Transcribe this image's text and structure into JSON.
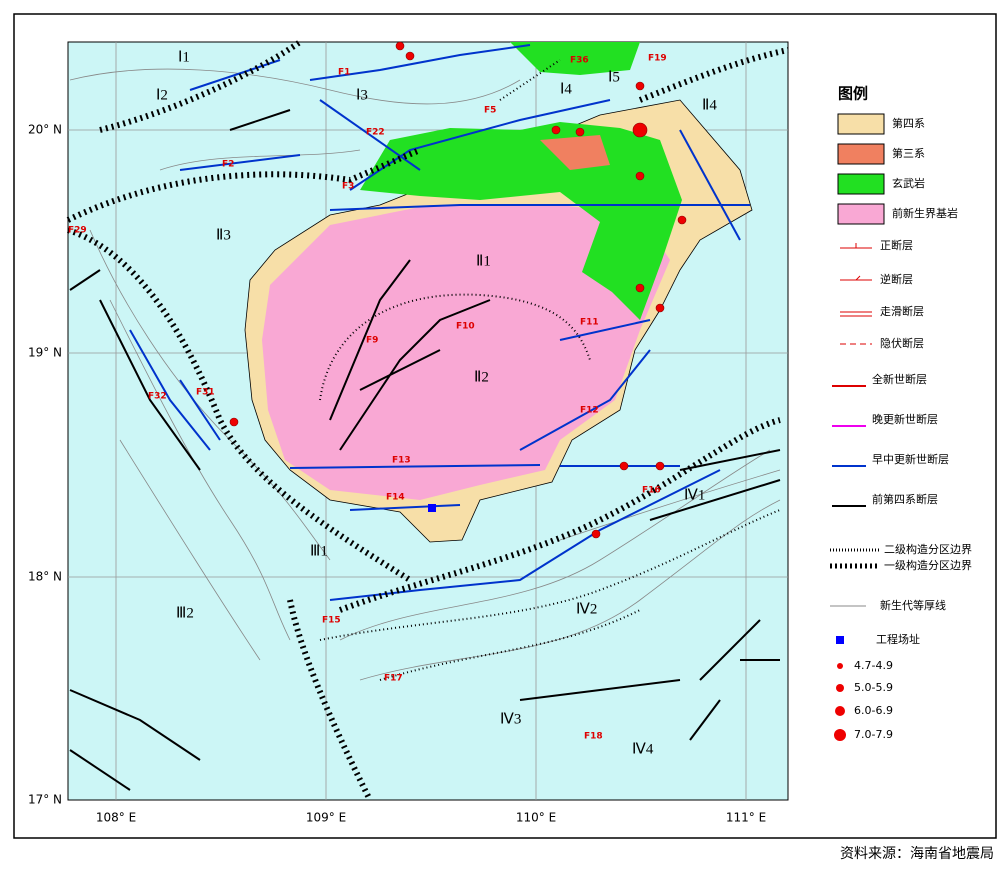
{
  "map": {
    "lat_labels": [
      "20° N",
      "19° N",
      "18° N",
      "17° N"
    ],
    "lon_labels": [
      "108° E",
      "109° E",
      "110° E",
      "111° E"
    ],
    "zones": [
      "Ⅰ1",
      "Ⅰ2",
      "Ⅰ3",
      "Ⅰ4",
      "Ⅰ5",
      "Ⅱ1",
      "Ⅱ2",
      "Ⅱ3",
      "Ⅱ4",
      "Ⅲ1",
      "Ⅲ2",
      "Ⅳ1",
      "Ⅳ2",
      "Ⅳ3",
      "Ⅳ4"
    ],
    "faults": [
      "F1",
      "F2",
      "F3",
      "F5",
      "F9",
      "F10",
      "F11",
      "F12",
      "F13",
      "F14",
      "F15",
      "F16",
      "F17",
      "F18",
      "F19",
      "F22",
      "F29",
      "F31",
      "F32",
      "F36"
    ]
  },
  "legend": {
    "title": "图例",
    "items": [
      "第四系",
      "第三系",
      "玄武岩",
      "前新生界基岩",
      "正断层",
      "逆断层",
      "走滑断层",
      "隐伏断层",
      "全新世断层",
      "晚更新世断层",
      "早中更新世断层",
      "前第四系断层",
      "二级构造分区边界",
      "一级构造分区边界",
      "新生代等厚线",
      "工程场址",
      "4.7-4.9",
      "5.0-5.9",
      "6.0-6.9",
      "7.0-7.9"
    ]
  },
  "source": "资料来源：海南省地震局"
}
